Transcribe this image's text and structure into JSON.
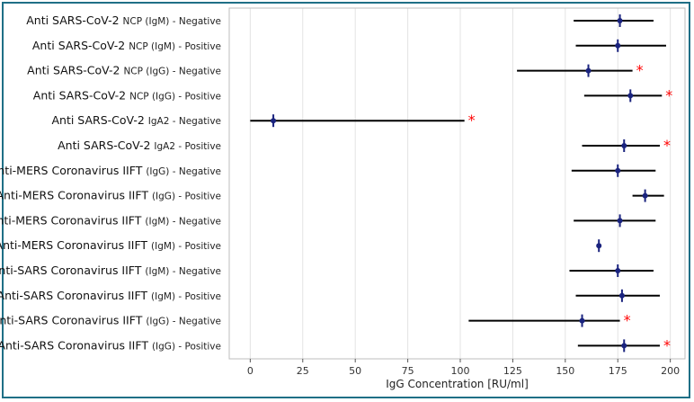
{
  "chart_data": {
    "type": "scatter",
    "style": "forest-plot (point with horizontal interval)",
    "xlabel": "IgG Concentration [RU/ml]",
    "xlim": [
      -10,
      207
    ],
    "xticks": [
      0,
      25,
      50,
      75,
      100,
      125,
      150,
      175,
      200
    ],
    "grid": "vertical",
    "point_color": "#1a237e",
    "interval_color": "#000000",
    "marker_color": "#ff0000",
    "marker_symbol": "*",
    "categories": [
      {
        "main": "Anti SARS-CoV-2",
        "sub": "NCP (IgM) - Negative",
        "value": 176,
        "low": 154,
        "high": 192,
        "significant": false
      },
      {
        "main": "Anti SARS-CoV-2",
        "sub": "NCP (IgM) - Positive",
        "value": 175,
        "low": 155,
        "high": 198,
        "significant": false
      },
      {
        "main": "Anti SARS-CoV-2",
        "sub": "NCP (IgG) - Negative",
        "value": 161,
        "low": 127,
        "high": 182,
        "significant": true
      },
      {
        "main": "Anti SARS-CoV-2",
        "sub": "NCP (IgG) - Positive",
        "value": 181,
        "low": 159,
        "high": 196,
        "significant": true
      },
      {
        "main": "Anti SARS-CoV-2",
        "sub": "IgA2 - Negative",
        "value": 11,
        "low": 0,
        "high": 102,
        "significant": true
      },
      {
        "main": "Anti SARS-CoV-2",
        "sub": "IgA2 - Positive",
        "value": 178,
        "low": 158,
        "high": 195,
        "significant": true
      },
      {
        "main": "Anti-MERS Coronavirus IIFT",
        "sub": "(IgG) - Negative",
        "value": 175,
        "low": 153,
        "high": 193,
        "significant": false
      },
      {
        "main": "Anti-MERS Coronavirus IIFT",
        "sub": "(IgG) - Positive",
        "value": 188,
        "low": 182,
        "high": 197,
        "significant": false
      },
      {
        "main": "Anti-MERS Coronavirus IIFT",
        "sub": "(IgM) - Negative",
        "value": 176,
        "low": 154,
        "high": 193,
        "significant": false
      },
      {
        "main": "Anti-MERS Coronavirus IIFT",
        "sub": "(IgM) - Positive",
        "value": 166,
        "low": 166,
        "high": 166,
        "significant": false
      },
      {
        "main": "Anti-SARS Coronavirus IIFT",
        "sub": "(IgM) - Negative",
        "value": 175,
        "low": 152,
        "high": 192,
        "significant": false
      },
      {
        "main": "Anti-SARS Coronavirus IIFT",
        "sub": "(IgM) - Positive",
        "value": 177,
        "low": 155,
        "high": 195,
        "significant": false
      },
      {
        "main": "Anti-SARS Coronavirus IIFT",
        "sub": "(IgG) - Negative",
        "value": 158,
        "low": 104,
        "high": 176,
        "significant": true
      },
      {
        "main": "Anti-SARS Coronavirus IIFT",
        "sub": "(IgG) - Positive",
        "value": 178,
        "low": 156,
        "high": 195,
        "significant": true
      }
    ]
  }
}
